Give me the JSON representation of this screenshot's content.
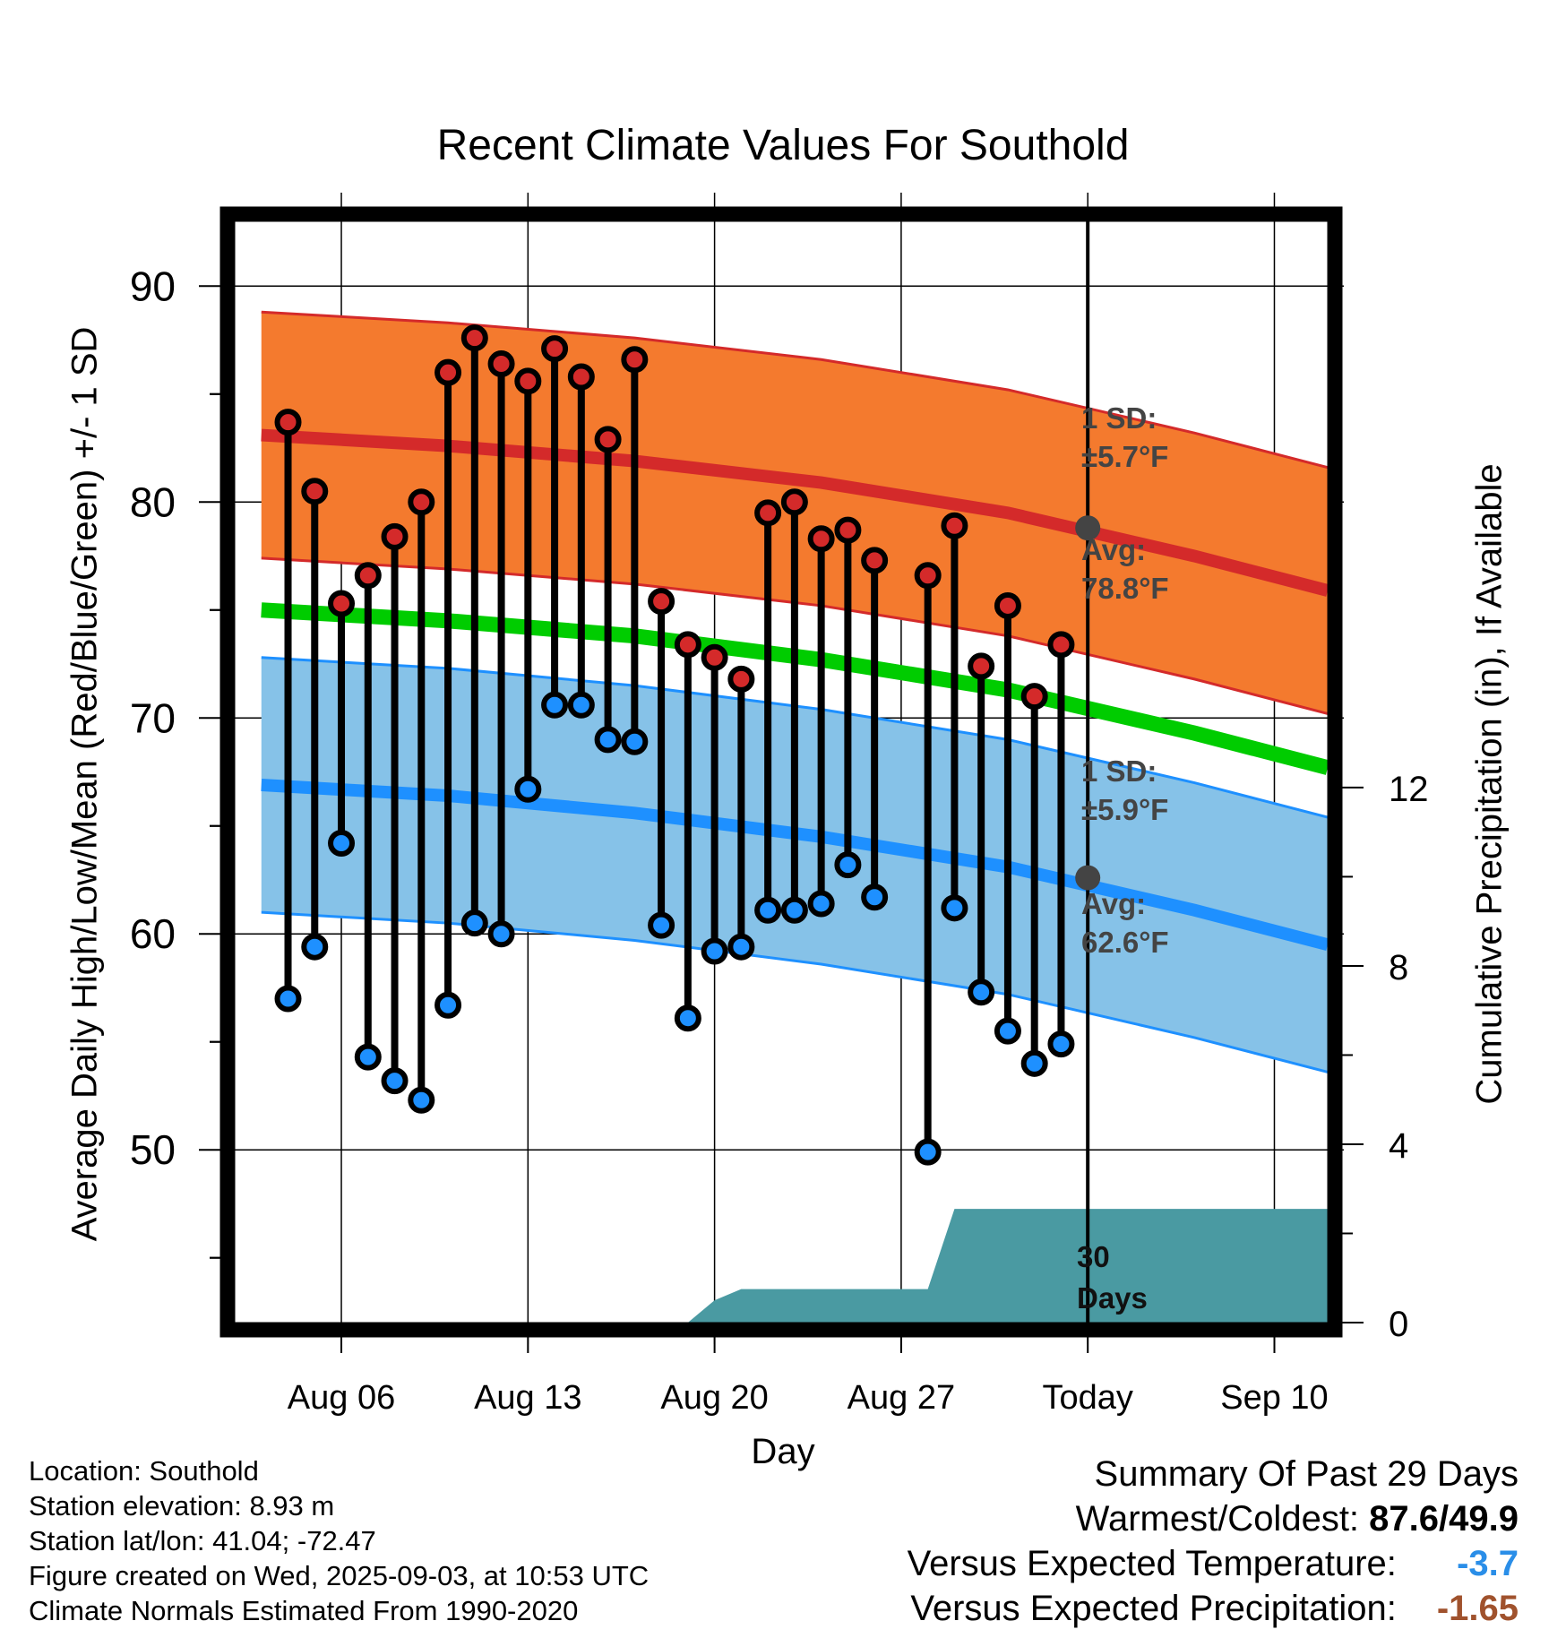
{
  "title": "Recent Climate Values For Southold",
  "axes": {
    "y_left_label": "Average Daily High/Low/Mean (Red/Blue/Green) +/- 1 SD",
    "y_right_label": "Cumulative Precipitation (in), If Available",
    "x_label": "Day"
  },
  "annotations": {
    "high_sd": [
      "1 SD:",
      "±5.7°F"
    ],
    "high_avg": [
      "Avg:",
      "78.8°F"
    ],
    "low_sd": [
      "1 SD:",
      "±5.9°F"
    ],
    "low_avg": [
      "Avg:",
      "62.6°F"
    ],
    "days": [
      "30",
      "Days"
    ]
  },
  "info": {
    "location": "Location: Southold",
    "elevation": "Station elevation: 8.93 m",
    "latlon": "Station lat/lon: 41.04; -72.47",
    "created": "Figure created on Wed, 2025-09-03, at 10:53 UTC",
    "normals": "Climate Normals Estimated From 1990-2020"
  },
  "summary": {
    "heading": "Summary Of Past 29 Days",
    "warm_cold_label": "Warmest/Coldest:",
    "warm_cold_value": "87.6/49.9",
    "temp_label": "Versus Expected Temperature:",
    "temp_value": "-3.7",
    "precip_label": "Versus Expected Precipitation:",
    "precip_value": "-1.65"
  },
  "colors": {
    "high_band": "#f47a2e",
    "high_line": "#d42a2a",
    "mean_line": "#00cc00",
    "low_band": "#86c2e8",
    "low_line": "#1e90ff",
    "precip": "#4a9aa2",
    "high_marker": "#d42a2a",
    "low_marker": "#1e90ff",
    "warm_text": "#000000",
    "cold_text": "#2a8ee8",
    "dry_text": "#a0522d"
  },
  "chart_data": {
    "type": "line",
    "x_range": [
      "Aug 02",
      "Sep 12"
    ],
    "ylim": [
      42,
      93
    ],
    "y_ticks": [
      50,
      60,
      70,
      80,
      90
    ],
    "y2lim": [
      0,
      24.7
    ],
    "y2_ticks": [
      0,
      4,
      8,
      12
    ],
    "x_ticks": [
      {
        "date": "Aug 06",
        "label": "Aug 06"
      },
      {
        "date": "Aug 13",
        "label": "Aug 13"
      },
      {
        "date": "Aug 20",
        "label": "Aug 20"
      },
      {
        "date": "Aug 27",
        "label": "Aug 27"
      },
      {
        "date": "Sep 03",
        "label": "Today"
      },
      {
        "date": "Sep 10",
        "label": "Sep 10"
      }
    ],
    "grid": true,
    "today": "Sep 03",
    "daily": {
      "dates": [
        "Aug 04",
        "Aug 05",
        "Aug 06",
        "Aug 07",
        "Aug 08",
        "Aug 09",
        "Aug 10",
        "Aug 11",
        "Aug 12",
        "Aug 13",
        "Aug 14",
        "Aug 15",
        "Aug 16",
        "Aug 17",
        "Aug 18",
        "Aug 19",
        "Aug 20",
        "Aug 21",
        "Aug 22",
        "Aug 23",
        "Aug 24",
        "Aug 25",
        "Aug 26",
        "Aug 28",
        "Aug 29",
        "Aug 30",
        "Aug 31",
        "Sep 01",
        "Sep 02"
      ],
      "highs": [
        83.7,
        80.5,
        75.3,
        76.6,
        78.4,
        80.0,
        86.0,
        87.6,
        86.4,
        85.6,
        87.1,
        85.8,
        82.9,
        86.6,
        75.4,
        73.4,
        72.8,
        71.8,
        79.5,
        80.0,
        78.3,
        78.7,
        77.3,
        76.6,
        78.9,
        72.4,
        75.2,
        71.0,
        73.4
      ],
      "lows": [
        57.0,
        59.4,
        64.2,
        54.3,
        53.2,
        52.3,
        56.7,
        60.5,
        60.0,
        66.7,
        70.6,
        70.6,
        69.0,
        68.9,
        60.4,
        56.1,
        59.2,
        59.4,
        61.1,
        61.1,
        61.4,
        63.2,
        61.7,
        49.9,
        61.2,
        57.3,
        55.5,
        54.0,
        54.9
      ]
    },
    "normals": {
      "dates": [
        "Aug 03",
        "Aug 10",
        "Aug 17",
        "Aug 24",
        "Aug 31",
        "Sep 07",
        "Sep 12"
      ],
      "high_mean": [
        83.1,
        82.6,
        81.9,
        80.9,
        79.5,
        77.5,
        75.9
      ],
      "high_sd": 5.7,
      "low_mean": [
        66.9,
        66.4,
        65.6,
        64.5,
        63.1,
        61.1,
        59.5
      ],
      "low_sd": 5.9,
      "mean": [
        75.0,
        74.5,
        73.8,
        72.7,
        71.3,
        69.3,
        67.7
      ]
    },
    "precip_cumulative": {
      "dates": [
        "Aug 03",
        "Aug 19",
        "Aug 20",
        "Aug 21",
        "Aug 28",
        "Aug 29",
        "Sep 12"
      ],
      "values": [
        0,
        0,
        0.5,
        0.75,
        0.75,
        2.55,
        2.55
      ]
    }
  }
}
